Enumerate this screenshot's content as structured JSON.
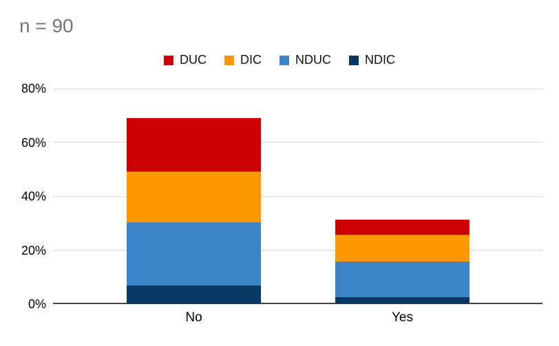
{
  "annotation": {
    "text": "n = 90"
  },
  "legend": [
    {
      "label": "DUC",
      "color": "#cc0000"
    },
    {
      "label": "DIC",
      "color": "#ff9900"
    },
    {
      "label": "NDUC",
      "color": "#3d85c6"
    },
    {
      "label": "NDIC",
      "color": "#073763"
    }
  ],
  "chart_data": {
    "type": "bar",
    "stacked": true,
    "orientation": "vertical",
    "annotation": "n = 90",
    "categories": [
      "No",
      "Yes"
    ],
    "series": [
      {
        "name": "NDIC",
        "color": "#073763",
        "values": [
          6.7,
          2.2
        ]
      },
      {
        "name": "NDUC",
        "color": "#3d85c6",
        "values": [
          23.3,
          13.3
        ]
      },
      {
        "name": "DIC",
        "color": "#ff9900",
        "values": [
          18.9,
          10.0
        ]
      },
      {
        "name": "DUC",
        "color": "#cc0000",
        "values": [
          20.0,
          5.6
        ]
      }
    ],
    "stack_totals": [
      68.9,
      31.1
    ],
    "y_axis": {
      "unit": "%",
      "range": [
        0,
        80
      ],
      "ticks": [
        {
          "label": "0%",
          "value": 0
        },
        {
          "label": "20%",
          "value": 20
        },
        {
          "label": "40%",
          "value": 40
        },
        {
          "label": "60%",
          "value": 60
        },
        {
          "label": "80%",
          "value": 80
        }
      ]
    },
    "x_axis": {
      "labels": [
        "No",
        "Yes"
      ]
    },
    "legend_position": "top",
    "grid": true,
    "colors": {
      "gridline": "#d9d9d9",
      "axis_line": "#424242",
      "tick_text": "#000000",
      "annotation_text": "#757575",
      "background": "#ffffff"
    }
  }
}
